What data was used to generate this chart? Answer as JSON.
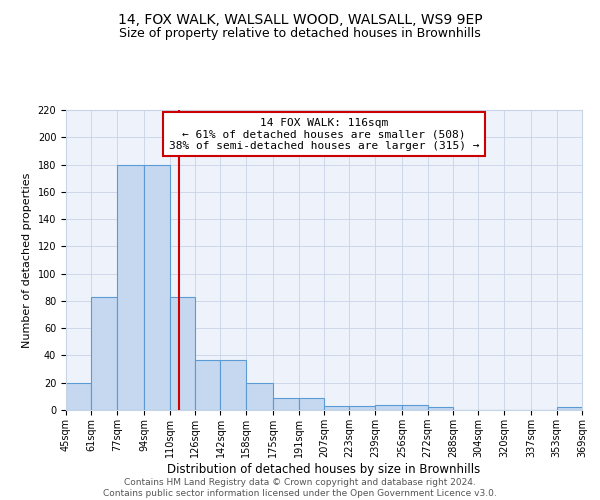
{
  "title": "14, FOX WALK, WALSALL WOOD, WALSALL, WS9 9EP",
  "subtitle": "Size of property relative to detached houses in Brownhills",
  "xlabel": "Distribution of detached houses by size in Brownhills",
  "ylabel": "Number of detached properties",
  "bar_values": [
    20,
    83,
    180,
    180,
    83,
    37,
    37,
    20,
    9,
    9,
    3,
    3,
    4,
    4,
    2,
    0,
    0,
    0,
    0,
    2
  ],
  "bin_edges": [
    45,
    61,
    77,
    94,
    110,
    126,
    142,
    158,
    175,
    191,
    207,
    223,
    239,
    256,
    272,
    288,
    304,
    320,
    337,
    353,
    369
  ],
  "tick_labels": [
    "45sqm",
    "61sqm",
    "77sqm",
    "94sqm",
    "110sqm",
    "126sqm",
    "142sqm",
    "158sqm",
    "175sqm",
    "191sqm",
    "207sqm",
    "223sqm",
    "239sqm",
    "256sqm",
    "272sqm",
    "288sqm",
    "304sqm",
    "320sqm",
    "337sqm",
    "353sqm",
    "369sqm"
  ],
  "bar_color": "#c5d8f0",
  "bar_edge_color": "#5b9bd5",
  "red_line_x": 116,
  "annotation_text": "14 FOX WALK: 116sqm\n← 61% of detached houses are smaller (508)\n38% of semi-detached houses are larger (315) →",
  "annotation_box_color": "#ffffff",
  "annotation_box_edge": "#cc0000",
  "ylim": [
    0,
    220
  ],
  "yticks": [
    0,
    20,
    40,
    60,
    80,
    100,
    120,
    140,
    160,
    180,
    200,
    220
  ],
  "grid_color": "#c8d4e8",
  "background_color": "#eef2fa",
  "footer_text": "Contains HM Land Registry data © Crown copyright and database right 2024.\nContains public sector information licensed under the Open Government Licence v3.0.",
  "title_fontsize": 10,
  "subtitle_fontsize": 9,
  "xlabel_fontsize": 8.5,
  "ylabel_fontsize": 8,
  "tick_fontsize": 7,
  "annotation_fontsize": 8,
  "footer_fontsize": 6.5
}
